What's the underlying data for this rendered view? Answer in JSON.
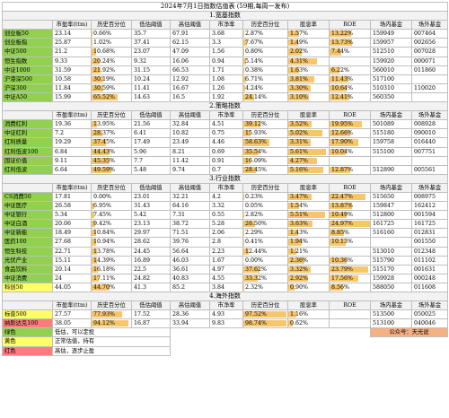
{
  "title": "2024年7月1日指数估值表 (59期,每周一发布)",
  "headers": [
    "",
    "市盈率(ttm)",
    "历史百分位",
    "低估阈值",
    "高估阈值",
    "市净率",
    "历史百分位",
    "股息率",
    "ROE",
    "场内基金",
    "场外基金"
  ],
  "sections": [
    {
      "title": "1.宽基指数",
      "rows": [
        {
          "name": "创业板50",
          "color": "green",
          "pe": "23.14",
          "pe_pct": "0.66%",
          "pe_pct_num": 0.66,
          "low": "35.7",
          "high": "67.91",
          "pb": "3.68",
          "pb_pct": "2.87%",
          "pb_pct_num": 2.87,
          "div": "1.57%",
          "div_num": 1.57,
          "roe": "13.22%",
          "roe_num": 13.22,
          "onsite": "159949",
          "offsite": "007464"
        },
        {
          "name": "创业板指",
          "color": "green",
          "pe": "25.87",
          "pe_pct": "1.02%",
          "pe_pct_num": 1.02,
          "low": "37.41",
          "high": "62.15",
          "pb": "3.3",
          "pb_pct": "7.67%",
          "pb_pct_num": 7.67,
          "div": "1.49%",
          "div_num": 1.49,
          "roe": "13.73%",
          "roe_num": 13.73,
          "onsite": "159957",
          "offsite": "002656"
        },
        {
          "name": "中证500",
          "color": "green",
          "pe": "21.2",
          "pe_pct": "10.68%",
          "pe_pct_num": 10.68,
          "low": "23.07",
          "high": "47.09",
          "pb": "1.56",
          "pb_pct": "0.80%",
          "pb_pct_num": 0.8,
          "div": "2.02%",
          "div_num": 2.02,
          "roe": "7.44%",
          "roe_num": 7.44,
          "onsite": "512510",
          "offsite": "007028"
        },
        {
          "name": "恒生指数",
          "color": "green",
          "pe": "9.33",
          "pe_pct": "20.24%",
          "pe_pct_num": 20.24,
          "low": "9.32",
          "high": "16.06",
          "pb": "0.94",
          "pb_pct": "5.14%",
          "pb_pct_num": 5.14,
          "div": "4.31%",
          "div_num": 4.31,
          "roe": "",
          "roe_num": 0,
          "onsite": "159920",
          "offsite": "000071"
        },
        {
          "name": "中证1000",
          "color": "green",
          "pe": "31.59",
          "pe_pct": "21.92%",
          "pe_pct_num": 21.92,
          "low": "31.15",
          "high": "66.53",
          "pb": "1.71",
          "pb_pct": "0.38%",
          "pb_pct_num": 0.38,
          "div": "1.63%",
          "div_num": 1.63,
          "roe": "6.22%",
          "roe_num": 6.22,
          "onsite": "560010",
          "offsite": "011860"
        },
        {
          "name": "沪港深500",
          "color": "green",
          "pe": "10.58",
          "pe_pct": "30.19%",
          "pe_pct_num": 30.19,
          "low": "10.24",
          "high": "12.92",
          "pb": "1.08",
          "pb_pct": "6.71%",
          "pb_pct_num": 6.71,
          "div": "3.81%",
          "div_num": 3.81,
          "roe": "11.43%",
          "roe_num": 11.43,
          "onsite": "517100",
          "offsite": ""
        },
        {
          "name": "沪深300",
          "color": "green",
          "pe": "11.84",
          "pe_pct": "30.59%",
          "pe_pct_num": 30.59,
          "low": "11.41",
          "high": "16.67",
          "pb": "1.26",
          "pb_pct": "4.24%",
          "pb_pct_num": 4.24,
          "div": "3.30%",
          "div_num": 3.3,
          "roe": "10.64%",
          "roe_num": 10.64,
          "onsite": "510310",
          "offsite": "110020"
        },
        {
          "name": "中证A50",
          "color": "green",
          "pe": "15.99",
          "pe_pct": "65.52%",
          "pe_pct_num": 65.52,
          "low": "14.63",
          "high": "16.5",
          "pb": "1.92",
          "pb_pct": "24.14%",
          "pb_pct_num": 24.14,
          "div": "3.10%",
          "div_num": 3.1,
          "roe": "12.41%",
          "roe_num": 12.41,
          "onsite": "560350",
          "offsite": ""
        }
      ]
    },
    {
      "title": "2.策略指数",
      "rows": [
        {
          "name": "消费红利",
          "color": "green",
          "pe": "19.36",
          "pe_pct": "13.95%",
          "pe_pct_num": 13.95,
          "low": "21.56",
          "high": "32.84",
          "pb": "4.51",
          "pb_pct": "39.12%",
          "pb_pct_num": 39.12,
          "div": "3.52%",
          "div_num": 3.52,
          "roe": "19.95%",
          "roe_num": 19.95,
          "onsite": "501089",
          "offsite": "008928"
        },
        {
          "name": "中证红利",
          "color": "green",
          "pe": "7.2",
          "pe_pct": "28.37%",
          "pe_pct_num": 28.37,
          "low": "6.41",
          "high": "10.82",
          "pb": "0.75",
          "pb_pct": "15.93%",
          "pb_pct_num": 15.93,
          "div": "5.02%",
          "div_num": 5.02,
          "roe": "12.66%",
          "roe_num": 12.66,
          "onsite": "515180",
          "offsite": "090010"
        },
        {
          "name": "红利质量",
          "color": "green",
          "pe": "19.29",
          "pe_pct": "37.45%",
          "pe_pct_num": 37.45,
          "low": "17.49",
          "high": "23.49",
          "pb": "4.46",
          "pb_pct": "58.63%",
          "pb_pct_num": 58.63,
          "div": "3.31%",
          "div_num": 3.31,
          "roe": "17.90%",
          "roe_num": 17.9,
          "onsite": "159758",
          "offsite": "016440"
        },
        {
          "name": "红利低波100",
          "color": "green",
          "pe": "6.84",
          "pe_pct": "44.43%",
          "pe_pct_num": 44.43,
          "low": "5.96",
          "high": "8.21",
          "pb": "0.69",
          "pb_pct": "35.54%",
          "pb_pct_num": 35.54,
          "div": "5.61%",
          "div_num": 5.61,
          "roe": "10.04%",
          "roe_num": 10.04,
          "onsite": "515100",
          "offsite": "007751"
        },
        {
          "name": "国证价值",
          "color": "green",
          "pe": "9.11",
          "pe_pct": "45.35%",
          "pe_pct_num": 45.35,
          "low": "7.7",
          "high": "11.42",
          "pb": "0.91",
          "pb_pct": "16.09%",
          "pb_pct_num": 16.09,
          "div": "4.27%",
          "div_num": 4.27,
          "roe": "",
          "roe_num": 0,
          "onsite": "",
          "offsite": ""
        },
        {
          "name": "红利低波",
          "color": "green",
          "pe": "6.64",
          "pe_pct": "49.59%",
          "pe_pct_num": 49.59,
          "low": "5.48",
          "high": "9.74",
          "pb": "0.7",
          "pb_pct": "28.45%",
          "pb_pct_num": 28.45,
          "div": "5.16%",
          "div_num": 5.16,
          "roe": "12.87%",
          "roe_num": 12.87,
          "onsite": "512890",
          "offsite": "005561"
        }
      ]
    },
    {
      "title": "3.行业指数",
      "rows": [
        {
          "name": "CS消费50",
          "color": "green",
          "pe": "17.81",
          "pe_pct": "0.00%",
          "pe_pct_num": 0,
          "low": "23.01",
          "high": "32.21",
          "pb": "4.2",
          "pb_pct": "0.23%",
          "pb_pct_num": 0.23,
          "div": "3.47%",
          "div_num": 3.47,
          "roe": "22.47%",
          "roe_num": 22.47,
          "onsite": "515650",
          "offsite": "008975"
        },
        {
          "name": "中证医疗",
          "color": "green",
          "pe": "26.58",
          "pe_pct": "6.95%",
          "pe_pct_num": 6.95,
          "low": "31.43",
          "high": "64.16",
          "pb": "3.32",
          "pb_pct": "0.05%",
          "pb_pct_num": 0.05,
          "div": "1.54%",
          "div_num": 1.54,
          "roe": "13.87%",
          "roe_num": 13.87,
          "onsite": "159847",
          "offsite": "162412"
        },
        {
          "name": "中证银行",
          "color": "green",
          "pe": "5.34",
          "pe_pct": "7.45%",
          "pe_pct_num": 7.45,
          "low": "5.42",
          "high": "7.31",
          "pb": "0.55",
          "pb_pct": "2.82%",
          "pb_pct_num": 2.82,
          "div": "5.51%",
          "div_num": 5.51,
          "roe": "10.49%",
          "roe_num": 10.49,
          "onsite": "512800",
          "offsite": "001594"
        },
        {
          "name": "中证白酒",
          "color": "green",
          "pe": "20.06",
          "pe_pct": "9.42%",
          "pe_pct_num": 9.42,
          "low": "23.13",
          "high": "38.72",
          "pb": "5.28",
          "pb_pct": "26.50%",
          "pb_pct_num": 26.5,
          "div": "3.63%",
          "div_num": 3.63,
          "roe": "24.97%",
          "roe_num": 24.97,
          "onsite": "161725",
          "offsite": "161725"
        },
        {
          "name": "中证新能",
          "color": "green",
          "pe": "18.49",
          "pe_pct": "10.84%",
          "pe_pct_num": 10.84,
          "low": "29.97",
          "high": "71.51",
          "pb": "2.06",
          "pb_pct": "2.29%",
          "pb_pct_num": 2.29,
          "div": "1.43%",
          "div_num": 1.43,
          "roe": "8.85%",
          "roe_num": 8.85,
          "onsite": "516160",
          "offsite": "012831"
        },
        {
          "name": "医药100",
          "color": "green",
          "pe": "27.68",
          "pe_pct": "10.94%",
          "pe_pct_num": 10.94,
          "low": "28.62",
          "high": "39.76",
          "pb": "2.8",
          "pb_pct": "0.41%",
          "pb_pct_num": 0.41,
          "div": "1.94%",
          "div_num": 1.94,
          "roe": "10.13%",
          "roe_num": 10.13,
          "onsite": "",
          "offsite": "001550"
        },
        {
          "name": "恒生科技",
          "color": "green",
          "pe": "22.71",
          "pe_pct": "13.78%",
          "pe_pct_num": 13.78,
          "low": "24.45",
          "high": "56.64",
          "pb": "2.23",
          "pb_pct": "12.44%",
          "pb_pct_num": 12.44,
          "div": "1.21%",
          "div_num": 1.21,
          "roe": "",
          "roe_num": 0,
          "onsite": "513010",
          "offsite": "012348"
        },
        {
          "name": "光伏产业",
          "color": "green",
          "pe": "15.11",
          "pe_pct": "14.39%",
          "pe_pct_num": 14.39,
          "low": "16.89",
          "high": "46.03",
          "pb": "1.67",
          "pb_pct": "0.00%",
          "pb_pct_num": 0,
          "div": "2.36%",
          "div_num": 2.36,
          "roe": "10.36%",
          "roe_num": 10.36,
          "onsite": "515790",
          "offsite": "011102"
        },
        {
          "name": "食品饮料",
          "color": "green",
          "pe": "20.14",
          "pe_pct": "16.18%",
          "pe_pct_num": 16.18,
          "low": "22.5",
          "high": "36.61",
          "pb": "4.97",
          "pb_pct": "37.62%",
          "pb_pct_num": 37.62,
          "div": "3.32%",
          "div_num": 3.32,
          "roe": "23.79%",
          "roe_num": 23.79,
          "onsite": "515170",
          "offsite": "001631"
        },
        {
          "name": "中证消费",
          "color": "green",
          "pe": "24",
          "pe_pct": "17.11%",
          "pe_pct_num": 17.11,
          "low": "24.82",
          "high": "40.83",
          "pb": "4.55",
          "pb_pct": "33.32%",
          "pb_pct_num": 33.32,
          "div": "2.92%",
          "div_num": 2.92,
          "roe": "17.56%",
          "roe_num": 17.56,
          "onsite": "159928",
          "offsite": "000248"
        },
        {
          "name": "科创50",
          "color": "yellow",
          "pe": "44.05",
          "pe_pct": "44.70%",
          "pe_pct_num": 44.7,
          "low": "41.3",
          "high": "85.2",
          "pb": "3.84",
          "pb_pct": "2.32%",
          "pb_pct_num": 2.32,
          "div": "0.90%",
          "div_num": 0.9,
          "roe": "8.56%",
          "roe_num": 8.56,
          "onsite": "588050",
          "offsite": "011608"
        }
      ]
    },
    {
      "title": "4.海外指数",
      "rows": [
        {
          "name": "标普500",
          "color": "yellow",
          "pe": "27.57",
          "pe_pct": "77.93%",
          "pe_pct_num": 77.93,
          "low": "17.52",
          "high": "28.36",
          "pb": "4.93",
          "pb_pct": "97.52%",
          "pb_pct_num": 97.52,
          "div": "1.16%",
          "div_num": 1.16,
          "roe": "",
          "roe_num": 0,
          "onsite": "513500",
          "offsite": "050025"
        },
        {
          "name": "纳斯达克100",
          "color": "red",
          "pe": "38.05",
          "pe_pct": "94.12%",
          "pe_pct_num": 94.12,
          "low": "16.87",
          "high": "33.94",
          "pb": "9.83",
          "pb_pct": "98.74%",
          "pb_pct_num": 98.74,
          "div": "0.62%",
          "div_num": 0.62,
          "roe": "",
          "roe_num": 0,
          "onsite": "513100",
          "offsite": "040046"
        }
      ]
    }
  ],
  "legend": [
    {
      "label": "绿色",
      "color": "green",
      "desc": "低估，可以定投"
    },
    {
      "label": "黄色",
      "color": "yellow",
      "desc": "正常估值，持有"
    },
    {
      "label": "红色",
      "color": "red",
      "desc": "高估，逐步止盈"
    }
  ],
  "wechat": "公众号：天光说",
  "colors": {
    "green": "#92d050",
    "yellow": "#ffff66",
    "red": "#ff7c7c",
    "bar": "#f6c66a",
    "wechat": "#f4b183"
  }
}
